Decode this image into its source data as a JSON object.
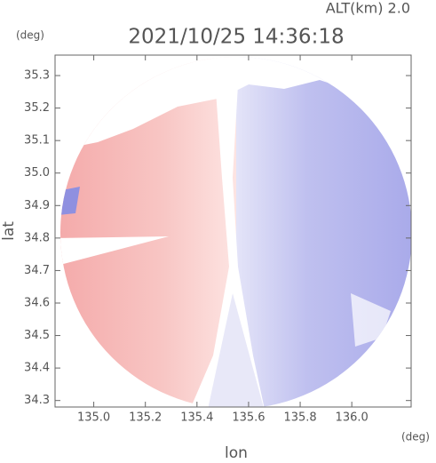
{
  "chart_data": {
    "type": "radar-map",
    "title": "2021/10/25 14:36:18",
    "subtitle": "ALT(km) 2.0",
    "x_label": "lon",
    "y_label": "lat",
    "x_unit": "(deg)",
    "y_unit": "(deg)",
    "xlim": [
      134.85,
      136.23
    ],
    "ylim": [
      34.28,
      35.363
    ],
    "xticks": [
      {
        "value": 135.0,
        "label": "135.0"
      },
      135.2,
      135.4,
      135.6,
      135.8,
      {
        "value": 136.0,
        "label": "136.0"
      }
    ],
    "yticks": [
      34.3,
      34.4,
      34.5,
      34.6,
      34.7,
      34.8,
      34.9,
      {
        "value": 35.0,
        "label": "35.0"
      },
      35.1,
      35.2,
      35.3
    ]
  }
}
